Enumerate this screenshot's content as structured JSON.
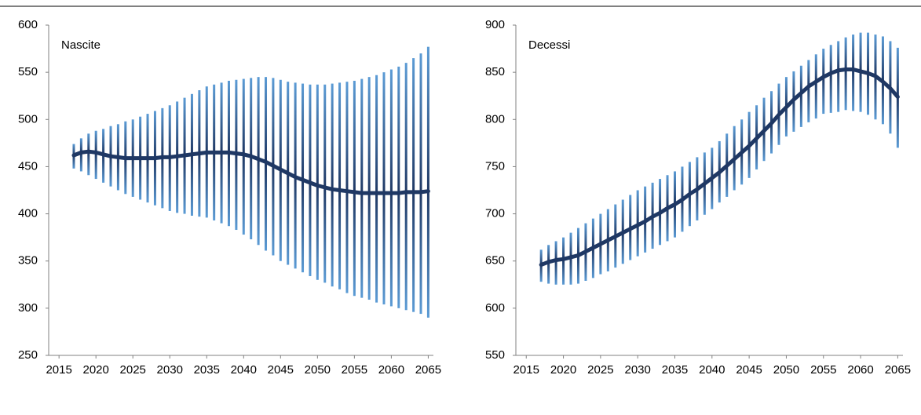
{
  "chart_data": [
    {
      "type": "range-line",
      "title": "Nascite",
      "x": [
        2017,
        2018,
        2019,
        2020,
        2021,
        2022,
        2023,
        2024,
        2025,
        2026,
        2027,
        2028,
        2029,
        2030,
        2031,
        2032,
        2033,
        2034,
        2035,
        2036,
        2037,
        2038,
        2039,
        2040,
        2041,
        2042,
        2043,
        2044,
        2045,
        2046,
        2047,
        2048,
        2049,
        2050,
        2051,
        2052,
        2053,
        2054,
        2055,
        2056,
        2057,
        2058,
        2059,
        2060,
        2061,
        2062,
        2063,
        2064,
        2065
      ],
      "values": [
        462,
        465,
        466,
        465,
        463,
        461,
        460,
        459,
        459,
        459,
        459,
        459,
        460,
        460,
        461,
        462,
        463,
        464,
        465,
        465,
        465,
        465,
        464,
        463,
        461,
        458,
        455,
        451,
        447,
        443,
        439,
        436,
        433,
        430,
        428,
        426,
        425,
        424,
        423,
        422,
        422,
        422,
        422,
        422,
        422,
        423,
        423,
        423,
        424
      ],
      "low": [
        448,
        445,
        441,
        437,
        433,
        429,
        425,
        421,
        418,
        415,
        412,
        409,
        406,
        403,
        401,
        400,
        398,
        397,
        396,
        393,
        390,
        387,
        383,
        378,
        373,
        367,
        361,
        356,
        350,
        346,
        342,
        338,
        334,
        330,
        327,
        323,
        320,
        316,
        313,
        311,
        309,
        306,
        304,
        302,
        300,
        298,
        296,
        294,
        290
      ],
      "high": [
        474,
        480,
        485,
        488,
        490,
        493,
        495,
        498,
        500,
        503,
        506,
        509,
        512,
        515,
        519,
        523,
        527,
        531,
        535,
        537,
        539,
        541,
        542,
        543,
        544,
        545,
        545,
        544,
        542,
        540,
        539,
        538,
        537,
        537,
        537,
        538,
        539,
        540,
        541,
        543,
        545,
        547,
        550,
        553,
        556,
        560,
        565,
        570,
        577
      ],
      "color": "#1f3864",
      "range_color": "#5b9bd5",
      "xlim": [
        2013.6,
        2065.7
      ],
      "xticks": [
        2015,
        2020,
        2025,
        2030,
        2035,
        2040,
        2045,
        2050,
        2055,
        2060,
        2065
      ],
      "ylim": [
        250,
        600
      ],
      "yticks": [
        250,
        300,
        350,
        400,
        450,
        500,
        550,
        600
      ]
    },
    {
      "type": "range-line",
      "title": "Decessi",
      "x": [
        2017,
        2018,
        2019,
        2020,
        2021,
        2022,
        2023,
        2024,
        2025,
        2026,
        2027,
        2028,
        2029,
        2030,
        2031,
        2032,
        2033,
        2034,
        2035,
        2036,
        2037,
        2038,
        2039,
        2040,
        2041,
        2042,
        2043,
        2044,
        2045,
        2046,
        2047,
        2048,
        2049,
        2050,
        2051,
        2052,
        2053,
        2054,
        2055,
        2056,
        2057,
        2058,
        2059,
        2060,
        2061,
        2062,
        2063,
        2064,
        2065
      ],
      "values": [
        646,
        649,
        651,
        652,
        654,
        656,
        660,
        664,
        668,
        672,
        676,
        680,
        684,
        688,
        692,
        697,
        701,
        706,
        710,
        715,
        721,
        726,
        732,
        738,
        744,
        751,
        758,
        765,
        772,
        780,
        788,
        796,
        805,
        813,
        821,
        828,
        835,
        840,
        845,
        849,
        852,
        853,
        853,
        851,
        849,
        846,
        840,
        833,
        824
      ],
      "low": [
        628,
        626,
        625,
        625,
        625,
        626,
        629,
        632,
        636,
        639,
        643,
        647,
        651,
        655,
        659,
        663,
        667,
        671,
        675,
        681,
        687,
        693,
        699,
        705,
        712,
        718,
        725,
        731,
        738,
        747,
        756,
        764,
        773,
        782,
        787,
        792,
        797,
        801,
        806,
        807,
        808,
        810,
        809,
        808,
        805,
        800,
        795,
        785,
        770
      ],
      "high": [
        662,
        667,
        671,
        675,
        680,
        685,
        690,
        695,
        700,
        705,
        710,
        715,
        720,
        725,
        729,
        733,
        737,
        741,
        745,
        750,
        755,
        760,
        765,
        770,
        777,
        785,
        793,
        800,
        808,
        815,
        823,
        830,
        838,
        845,
        851,
        857,
        863,
        869,
        875,
        879,
        883,
        887,
        890,
        892,
        892,
        890,
        888,
        883,
        876
      ],
      "color": "#1f3864",
      "range_color": "#5b9bd5",
      "xlim": [
        2013.6,
        2065.7
      ],
      "xticks": [
        2015,
        2020,
        2025,
        2030,
        2035,
        2040,
        2045,
        2050,
        2055,
        2060,
        2065
      ],
      "ylim": [
        550,
        900
      ],
      "yticks": [
        550,
        600,
        650,
        700,
        750,
        800,
        850,
        900
      ]
    }
  ]
}
